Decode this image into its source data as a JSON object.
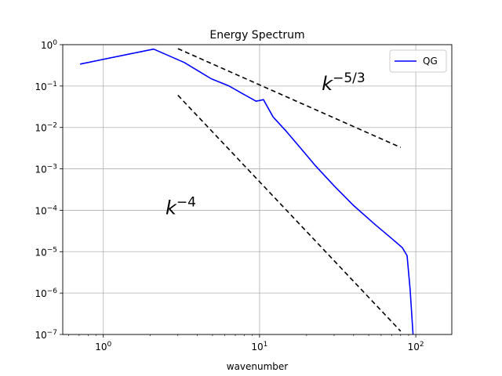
{
  "chart_data": {
    "type": "line",
    "title": "Energy Spectrum",
    "xlabel": "wavenumber",
    "ylabel": "",
    "xscale": "log",
    "yscale": "log",
    "xlim": [
      0.55,
      170
    ],
    "ylim": [
      1e-07,
      1
    ],
    "grid": true,
    "legend": {
      "placement": "top-right",
      "entries": [
        "QG"
      ]
    },
    "x_ticks": [
      {
        "value": 1,
        "base": "10",
        "exp": "0"
      },
      {
        "value": 10,
        "base": "10",
        "exp": "1"
      },
      {
        "value": 100,
        "base": "10",
        "exp": "2"
      }
    ],
    "y_ticks": [
      {
        "value": 1,
        "base": "10",
        "exp": "0"
      },
      {
        "value": 0.1,
        "base": "10",
        "exp": "−1"
      },
      {
        "value": 0.01,
        "base": "10",
        "exp": "−2"
      },
      {
        "value": 0.001,
        "base": "10",
        "exp": "−3"
      },
      {
        "value": 0.0001,
        "base": "10",
        "exp": "−4"
      },
      {
        "value": 1e-05,
        "base": "10",
        "exp": "−5"
      },
      {
        "value": 1e-06,
        "base": "10",
        "exp": "−6"
      },
      {
        "value": 1e-07,
        "base": "10",
        "exp": "−7"
      }
    ],
    "series": [
      {
        "name": "QG",
        "color": "#0000ff",
        "x": [
          0.71,
          2.1,
          3.3,
          4.9,
          6.4,
          7.6,
          9.5,
          10.6,
          12.2,
          14.9,
          18.4,
          22.5,
          30,
          40,
          55,
          70,
          82,
          88,
          92,
          96
        ],
        "y": [
          0.34,
          0.78,
          0.37,
          0.15,
          0.1,
          0.069,
          0.043,
          0.047,
          0.018,
          0.0079,
          0.0031,
          0.00125,
          0.00039,
          0.00013,
          4.5e-05,
          2.1e-05,
          1.25e-05,
          8e-06,
          1.2e-06,
          1e-07
        ]
      }
    ],
    "reference_lines": [
      {
        "x": [
          3,
          80
        ],
        "y": [
          0.8,
          0.0033
        ],
        "style": "dashed",
        "color": "#000000",
        "annotation": {
          "base": "k",
          "exp": "−5/3",
          "x": 25,
          "y": 0.08
        }
      },
      {
        "x": [
          3,
          80
        ],
        "y": [
          0.06,
          1.2e-07
        ],
        "style": "dashed",
        "color": "#000000",
        "annotation": {
          "base": "k",
          "exp": "−4",
          "x": 2.5,
          "y": 8e-05
        }
      }
    ]
  }
}
